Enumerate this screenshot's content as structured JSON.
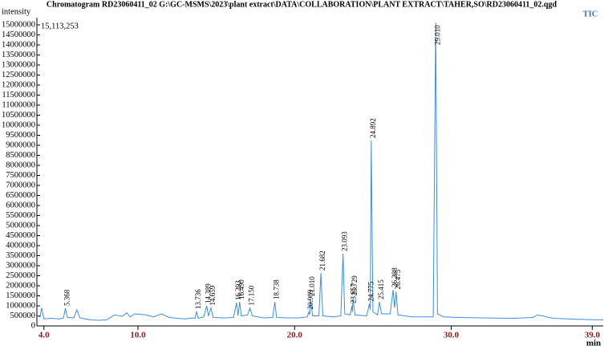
{
  "chart_data": {
    "type": "line",
    "title": "Chromatogram RD23060411_02 G:\\GC-MSMS\\2023\\plant extract\\DATA\\COLLABORATION\\PLANT EXTRACT\\TAHER,SO\\RD23060411_02.qgd",
    "y_label": "intensity",
    "x_label": "min",
    "max_annotation": "15,113,253",
    "xlim": [
      3.55,
      39.7
    ],
    "ylim": [
      0,
      15360000
    ],
    "xticks": [
      {
        "value": 4,
        "label": "4.0"
      },
      {
        "value": 10,
        "label": "10.0"
      },
      {
        "value": 20,
        "label": "20.0"
      },
      {
        "value": 30,
        "label": "30.0"
      },
      {
        "value": 39,
        "label": "39.0"
      }
    ],
    "yticks": [
      0,
      500000,
      1000000,
      1500000,
      2000000,
      2500000,
      3000000,
      3500000,
      4000000,
      4500000,
      5000000,
      5500000,
      6000000,
      6500000,
      7000000,
      7500000,
      8000000,
      8500000,
      9000000,
      9500000,
      10000000,
      10500000,
      11000000,
      11500000,
      12000000,
      12500000,
      13000000,
      13500000,
      14000000,
      14500000,
      15000000
    ],
    "series": [
      {
        "name": "TIC",
        "color": "#3a8ee6",
        "x": [
          3.6,
          3.75,
          3.85,
          4.0,
          4.5,
          5.0,
          5.25,
          5.368,
          5.5,
          5.9,
          6.1,
          6.3,
          7.0,
          7.5,
          8.0,
          8.5,
          9.0,
          9.3,
          9.5,
          9.8,
          10.5,
          11.0,
          11.5,
          12.0,
          12.5,
          13.0,
          13.5,
          13.65,
          13.736,
          13.85,
          14.2,
          14.389,
          14.5,
          14.659,
          14.8,
          15.5,
          16.1,
          16.293,
          16.39,
          16.49,
          16.6,
          17.0,
          17.15,
          17.3,
          18.0,
          18.6,
          18.738,
          18.85,
          19.5,
          20.3,
          20.8,
          20.909,
          20.96,
          21.01,
          21.15,
          21.55,
          21.682,
          21.8,
          22.5,
          22.95,
          23.093,
          23.2,
          23.55,
          23.657,
          23.69,
          23.729,
          23.85,
          24.6,
          24.775,
          24.83,
          24.892,
          25.0,
          25.3,
          25.415,
          25.55,
          26.1,
          26.288,
          26.38,
          26.475,
          26.6,
          27.5,
          28.0,
          28.85,
          29.01,
          29.12,
          29.5,
          30.5,
          32,
          34,
          35.2,
          35.5,
          36.5,
          38,
          39.7
        ],
        "values": [
          500000,
          450000,
          900000,
          350000,
          380000,
          350000,
          400000,
          880000,
          420000,
          400000,
          800000,
          400000,
          300000,
          280000,
          300000,
          550000,
          480000,
          650000,
          450000,
          600000,
          550000,
          450000,
          600000,
          420000,
          380000,
          350000,
          400000,
          380000,
          720000,
          380000,
          450000,
          1000000,
          500000,
          900000,
          420000,
          400000,
          420000,
          1160000,
          500000,
          1200000,
          500000,
          550000,
          900000,
          500000,
          400000,
          420000,
          1200000,
          420000,
          400000,
          400000,
          450000,
          700000,
          550000,
          1360000,
          500000,
          500000,
          2640000,
          500000,
          450000,
          500000,
          3600000,
          600000,
          550000,
          1000000,
          700000,
          1400000,
          550000,
          500000,
          1100000,
          800000,
          9240000,
          700000,
          550000,
          1200000,
          600000,
          600000,
          1800000,
          900000,
          1700000,
          550000,
          450000,
          450000,
          450000,
          15113253,
          600000,
          450000,
          420000,
          400000,
          380000,
          420000,
          550000,
          380000,
          330000,
          300000
        ]
      }
    ],
    "peaks": {
      "x": [
        5.368,
        13.736,
        14.389,
        14.659,
        16.293,
        16.49,
        17.15,
        18.738,
        20.909,
        21.01,
        21.682,
        23.093,
        23.657,
        23.729,
        24.775,
        24.892,
        25.415,
        26.288,
        26.475,
        29.01
      ],
      "labels": [
        "5.368",
        "13.736",
        "14.389",
        "14.659",
        "16.293",
        "16.490",
        "17.150",
        "18.738",
        "20.909",
        "21.010",
        "21.682",
        "23.093",
        "23.657",
        "23.729",
        "24.775",
        "24.892",
        "25.415",
        "26.288",
        "26.475",
        "29.010"
      ]
    }
  }
}
